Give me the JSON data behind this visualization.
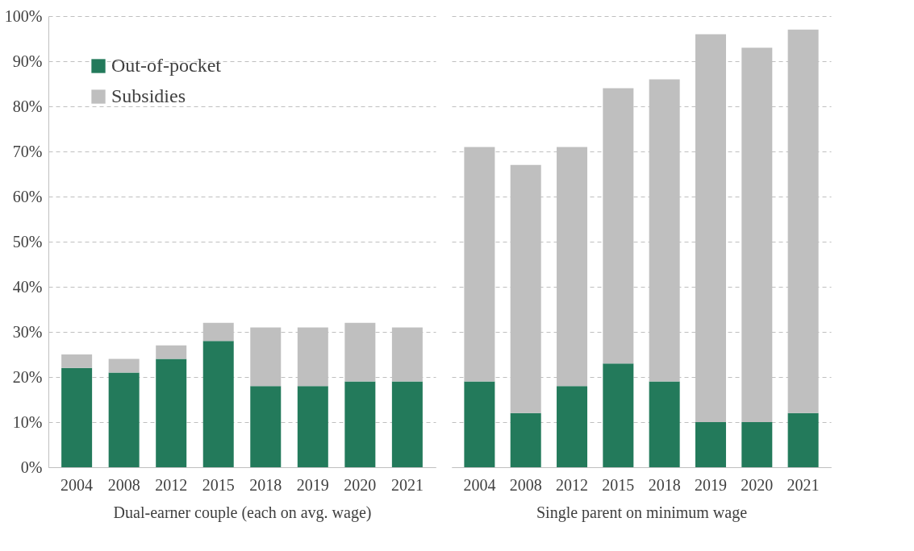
{
  "chart_data": [
    {
      "type": "bar",
      "stacked": true,
      "xlabel": "Dual-earner couple (each on avg. wage)",
      "categories": [
        "2004",
        "2008",
        "2012",
        "2015",
        "2018",
        "2019",
        "2020",
        "2021"
      ],
      "series": [
        {
          "name": "Out-of-pocket",
          "color": "#237a5b",
          "values": [
            22,
            21,
            24,
            28,
            18,
            18,
            19,
            19
          ]
        },
        {
          "name": "Subsidies",
          "color": "#bfbfbf",
          "values": [
            3,
            3,
            3,
            4,
            13,
            13,
            13,
            12
          ]
        }
      ],
      "ylim": [
        0,
        100
      ],
      "yticks": [
        {
          "value": 0,
          "label": "0%"
        },
        {
          "value": 10,
          "label": "10%"
        },
        {
          "value": 20,
          "label": "20%"
        },
        {
          "value": 30,
          "label": "30%"
        },
        {
          "value": 40,
          "label": "40%"
        },
        {
          "value": 50,
          "label": "50%"
        },
        {
          "value": 60,
          "label": "60%"
        },
        {
          "value": 70,
          "label": "70%"
        },
        {
          "value": 80,
          "label": "80%"
        },
        {
          "value": 90,
          "label": "90%"
        },
        {
          "value": 100,
          "label": "100%"
        }
      ],
      "grid": "y",
      "legend": "top left"
    },
    {
      "type": "bar",
      "stacked": true,
      "xlabel": "Single parent on minimum wage",
      "categories": [
        "2004",
        "2008",
        "2012",
        "2015",
        "2018",
        "2019",
        "2020",
        "2021"
      ],
      "series": [
        {
          "color": "#237a5b",
          "values": [
            19,
            12,
            18,
            23,
            19,
            10,
            10,
            12
          ]
        },
        {
          "color": "#bfbfbf",
          "values": [
            52,
            55,
            53,
            61,
            67,
            86,
            83,
            85
          ]
        }
      ],
      "ylim": [
        0,
        100
      ],
      "yticks": [
        {
          "value": 0,
          "label": null
        },
        {
          "value": 10,
          "label": null
        },
        {
          "value": 20,
          "label": null
        },
        {
          "value": 30,
          "label": null
        },
        {
          "value": 40,
          "label": null
        },
        {
          "value": 50,
          "label": null
        },
        {
          "value": 60,
          "label": null
        },
        {
          "value": 70,
          "label": null
        },
        {
          "value": 80,
          "label": null
        },
        {
          "value": 90,
          "label": null
        },
        {
          "value": 100,
          "label": null
        }
      ],
      "grid": "y",
      "tick_labels": "x"
    }
  ]
}
